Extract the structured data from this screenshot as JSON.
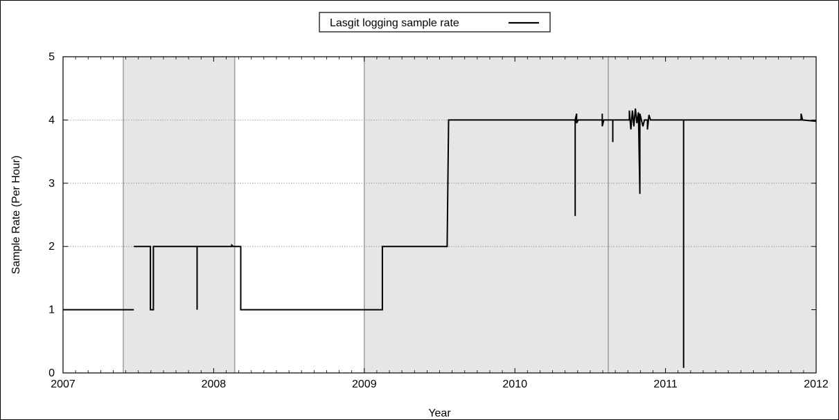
{
  "chart_data": {
    "type": "line",
    "title": "",
    "xlabel": "Year",
    "ylabel": "Sample Rate (Per Hour)",
    "xlim": [
      2007,
      2012
    ],
    "ylim": [
      0,
      5
    ],
    "x_ticks": [
      2007,
      2008,
      2009,
      2010,
      2011,
      2012
    ],
    "x_tick_labels": [
      "2007",
      "2008",
      "2009",
      "2010",
      "2011",
      "2012"
    ],
    "y_ticks": [
      0,
      1,
      2,
      3,
      4,
      5
    ],
    "y_tick_labels": [
      "0",
      "1",
      "2",
      "3",
      "4",
      "5"
    ],
    "grid": "horizontal dotted at y=2,3,4",
    "legend_position": "top-center",
    "shaded_periods": [
      {
        "start": 2007.4,
        "end": 2008.14
      },
      {
        "start": 2009.0,
        "end": 2010.62
      },
      {
        "start": 2010.62,
        "end": 2012.0
      }
    ],
    "period_boundaries": [
      2007.4,
      2008.14,
      2009.0,
      2010.62
    ],
    "series": [
      {
        "name": "Lasgit logging sample rate",
        "color": "#000000",
        "segments": [
          [
            [
              2007.0,
              1
            ],
            [
              2007.47,
              1
            ]
          ],
          [
            [
              2007.47,
              2
            ],
            [
              2007.58,
              2
            ],
            [
              2007.58,
              1
            ],
            [
              2007.6,
              1
            ],
            [
              2007.6,
              2
            ],
            [
              2007.89,
              2
            ],
            [
              2007.89,
              1
            ],
            [
              2007.89,
              2
            ],
            [
              2008.12,
              2
            ],
            [
              2008.12,
              2.02
            ],
            [
              2008.13,
              2
            ],
            [
              2008.18,
              2
            ],
            [
              2008.18,
              1
            ],
            [
              2009.12,
              1
            ],
            [
              2009.12,
              2
            ],
            [
              2009.55,
              2
            ],
            [
              2009.56,
              4
            ],
            [
              2010.4,
              4
            ],
            [
              2010.4,
              2.48
            ],
            [
              2010.4,
              4
            ],
            [
              2010.41,
              4.1
            ],
            [
              2010.41,
              3.95
            ],
            [
              2010.42,
              4
            ],
            [
              2010.58,
              4
            ],
            [
              2010.58,
              4.1
            ],
            [
              2010.58,
              3.9
            ],
            [
              2010.59,
              4
            ],
            [
              2010.65,
              4
            ],
            [
              2010.65,
              3.65
            ],
            [
              2010.65,
              4
            ],
            [
              2010.76,
              4
            ],
            [
              2010.76,
              4.15
            ],
            [
              2010.77,
              3.85
            ],
            [
              2010.78,
              4.15
            ],
            [
              2010.79,
              3.9
            ],
            [
              2010.8,
              4.18
            ],
            [
              2010.81,
              3.95
            ],
            [
              2010.82,
              4.12
            ],
            [
              2010.83,
              2.83
            ],
            [
              2010.83,
              4.1
            ],
            [
              2010.85,
              3.9
            ],
            [
              2010.86,
              4
            ],
            [
              2010.88,
              4
            ],
            [
              2010.88,
              3.85
            ],
            [
              2010.89,
              4.08
            ],
            [
              2010.9,
              4
            ],
            [
              2011.12,
              4
            ],
            [
              2011.12,
              0.08
            ],
            [
              2011.12,
              4
            ],
            [
              2011.9,
              4
            ],
            [
              2011.9,
              4.1
            ],
            [
              2011.91,
              4
            ],
            [
              2012.0,
              3.98
            ]
          ]
        ]
      }
    ]
  }
}
